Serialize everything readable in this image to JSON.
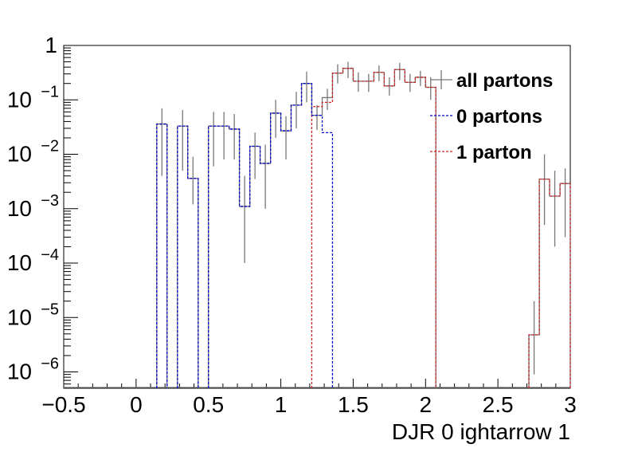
{
  "chart_data": {
    "type": "histogram",
    "xlabel": "DJR 0 ightarrow 1",
    "ylabel": "",
    "xlim": [
      -0.5,
      3.0
    ],
    "ylim_log10": [
      -6.3,
      0.0
    ],
    "y_scale": "log",
    "bin_width": 0.0714,
    "x_ticks": [
      {
        "value": -0.5,
        "label": "−0.5"
      },
      {
        "value": 0,
        "label": "0"
      },
      {
        "value": 0.5,
        "label": "0.5"
      },
      {
        "value": 1,
        "label": "1"
      },
      {
        "value": 1.5,
        "label": "1.5"
      },
      {
        "value": 2,
        "label": "2"
      },
      {
        "value": 2.5,
        "label": "2.5"
      },
      {
        "value": 3,
        "label": "3"
      }
    ],
    "y_ticks": [
      {
        "exp": 0,
        "base": "1",
        "sup": ""
      },
      {
        "exp": -1,
        "base": "10",
        "sup": "−1"
      },
      {
        "exp": -2,
        "base": "10",
        "sup": "−2"
      },
      {
        "exp": -3,
        "base": "10",
        "sup": "−3"
      },
      {
        "exp": -4,
        "base": "10",
        "sup": "−4"
      },
      {
        "exp": -5,
        "base": "10",
        "sup": "−5"
      },
      {
        "exp": -6,
        "base": "10",
        "sup": "−6"
      }
    ],
    "legend": [
      {
        "label": "all partons",
        "color": "#777777",
        "style": "solid"
      },
      {
        "label": "0 partons",
        "color": "#0000cc",
        "style": "dashed"
      },
      {
        "label": "1 parton",
        "color": "#cc2222",
        "style": "dashed"
      }
    ],
    "legend_position": "top-right",
    "series": [
      {
        "name": "all partons",
        "color": "#777777",
        "bins": [
          {
            "x0": 0.143,
            "x1": 0.214,
            "y": 0.036,
            "err": [
              0.004,
              0.07
            ]
          },
          {
            "x0": 0.286,
            "x1": 0.357,
            "y": 0.033,
            "err": [
              0.005,
              0.065
            ]
          },
          {
            "x0": 0.357,
            "x1": 0.429,
            "y": 0.0036,
            "err": [
              0.0012,
              0.009
            ]
          },
          {
            "x0": 0.5,
            "x1": 0.571,
            "y": 0.033,
            "err": [
              0.006,
              0.06
            ]
          },
          {
            "x0": 0.571,
            "x1": 0.643,
            "y": 0.033,
            "err": [
              0.008,
              0.06
            ]
          },
          {
            "x0": 0.643,
            "x1": 0.714,
            "y": 0.029,
            "err": [
              0.008,
              0.055
            ]
          },
          {
            "x0": 0.714,
            "x1": 0.786,
            "y": 0.0011,
            "err": [
              0.0001,
              0.004
            ]
          },
          {
            "x0": 0.786,
            "x1": 0.857,
            "y": 0.014,
            "err": [
              0.0035,
              0.025
            ]
          },
          {
            "x0": 0.857,
            "x1": 0.929,
            "y": 0.0068,
            "err": [
              0.001,
              0.015
            ]
          },
          {
            "x0": 0.929,
            "x1": 1.0,
            "y": 0.057,
            "err": [
              0.02,
              0.1
            ]
          },
          {
            "x0": 1.0,
            "x1": 1.071,
            "y": 0.027,
            "err": [
              0.008,
              0.05
            ]
          },
          {
            "x0": 1.071,
            "x1": 1.143,
            "y": 0.08,
            "err": [
              0.03,
              0.14
            ]
          },
          {
            "x0": 1.143,
            "x1": 1.214,
            "y": 0.2,
            "err": [
              0.09,
              0.33
            ]
          },
          {
            "x0": 1.214,
            "x1": 1.286,
            "y": 0.052,
            "err": [
              0.028,
              0.08
            ]
          },
          {
            "x0": 1.286,
            "x1": 1.357,
            "y": 0.11,
            "err": [
              0.065,
              0.16
            ]
          },
          {
            "x0": 1.357,
            "x1": 1.429,
            "y": 0.31,
            "err": [
              0.2,
              0.45
            ]
          },
          {
            "x0": 1.429,
            "x1": 1.5,
            "y": 0.38,
            "err": [
              0.25,
              0.5
            ]
          },
          {
            "x0": 1.5,
            "x1": 1.571,
            "y": 0.22,
            "err": [
              0.14,
              0.32
            ]
          },
          {
            "x0": 1.571,
            "x1": 1.643,
            "y": 0.22,
            "err": [
              0.14,
              0.3
            ]
          },
          {
            "x0": 1.643,
            "x1": 1.714,
            "y": 0.32,
            "err": [
              0.22,
              0.43
            ]
          },
          {
            "x0": 1.714,
            "x1": 1.786,
            "y": 0.18,
            "err": [
              0.12,
              0.26
            ]
          },
          {
            "x0": 1.786,
            "x1": 1.857,
            "y": 0.36,
            "err": [
              0.23,
              0.48
            ]
          },
          {
            "x0": 1.857,
            "x1": 1.929,
            "y": 0.21,
            "err": [
              0.14,
              0.3
            ]
          },
          {
            "x0": 1.929,
            "x1": 2.0,
            "y": 0.26,
            "err": [
              0.18,
              0.34
            ]
          },
          {
            "x0": 2.0,
            "x1": 2.071,
            "y": 0.17,
            "err": [
              0.1,
              0.26
            ]
          },
          {
            "x0": 2.714,
            "x1": 2.786,
            "y": 4.8e-06,
            "err": [
              9e-07,
              2e-05
            ]
          },
          {
            "x0": 2.786,
            "x1": 2.857,
            "y": 0.0035,
            "err": [
              0.0005,
              0.01
            ]
          },
          {
            "x0": 2.857,
            "x1": 2.929,
            "y": 0.0017,
            "err": [
              0.0002,
              0.005
            ]
          },
          {
            "x0": 2.929,
            "x1": 3.0,
            "y": 0.0029,
            "err": [
              0.0003,
              0.0055
            ]
          }
        ]
      },
      {
        "name": "0 partons",
        "color": "#0000cc",
        "bins": [
          {
            "x0": 0.143,
            "x1": 0.214,
            "y": 0.036
          },
          {
            "x0": 0.286,
            "x1": 0.357,
            "y": 0.033
          },
          {
            "x0": 0.357,
            "x1": 0.429,
            "y": 0.0036
          },
          {
            "x0": 0.5,
            "x1": 0.571,
            "y": 0.033
          },
          {
            "x0": 0.571,
            "x1": 0.643,
            "y": 0.033
          },
          {
            "x0": 0.643,
            "x1": 0.714,
            "y": 0.029
          },
          {
            "x0": 0.714,
            "x1": 0.786,
            "y": 0.0011
          },
          {
            "x0": 0.786,
            "x1": 0.857,
            "y": 0.014
          },
          {
            "x0": 0.857,
            "x1": 0.929,
            "y": 0.0068
          },
          {
            "x0": 0.929,
            "x1": 1.0,
            "y": 0.057
          },
          {
            "x0": 1.0,
            "x1": 1.071,
            "y": 0.027
          },
          {
            "x0": 1.071,
            "x1": 1.143,
            "y": 0.08
          },
          {
            "x0": 1.143,
            "x1": 1.214,
            "y": 0.2
          },
          {
            "x0": 1.214,
            "x1": 1.286,
            "y": 0.052
          },
          {
            "x0": 1.286,
            "x1": 1.357,
            "y": 0.025
          }
        ]
      },
      {
        "name": "1 parton",
        "color": "#cc2222",
        "bins": [
          {
            "x0": 1.214,
            "x1": 1.286,
            "y": 0.075
          },
          {
            "x0": 1.286,
            "x1": 1.357,
            "y": 0.09
          },
          {
            "x0": 1.357,
            "x1": 1.429,
            "y": 0.31
          },
          {
            "x0": 1.429,
            "x1": 1.5,
            "y": 0.38
          },
          {
            "x0": 1.5,
            "x1": 1.571,
            "y": 0.22
          },
          {
            "x0": 1.571,
            "x1": 1.643,
            "y": 0.22
          },
          {
            "x0": 1.643,
            "x1": 1.714,
            "y": 0.32
          },
          {
            "x0": 1.714,
            "x1": 1.786,
            "y": 0.18
          },
          {
            "x0": 1.786,
            "x1": 1.857,
            "y": 0.36
          },
          {
            "x0": 1.857,
            "x1": 1.929,
            "y": 0.21
          },
          {
            "x0": 1.929,
            "x1": 2.0,
            "y": 0.26
          },
          {
            "x0": 2.0,
            "x1": 2.071,
            "y": 0.17
          },
          {
            "x0": 2.714,
            "x1": 2.786,
            "y": 4.8e-06
          },
          {
            "x0": 2.786,
            "x1": 2.857,
            "y": 0.0035
          },
          {
            "x0": 2.857,
            "x1": 2.929,
            "y": 0.0017
          },
          {
            "x0": 2.929,
            "x1": 3.0,
            "y": 0.0029
          }
        ]
      }
    ]
  }
}
